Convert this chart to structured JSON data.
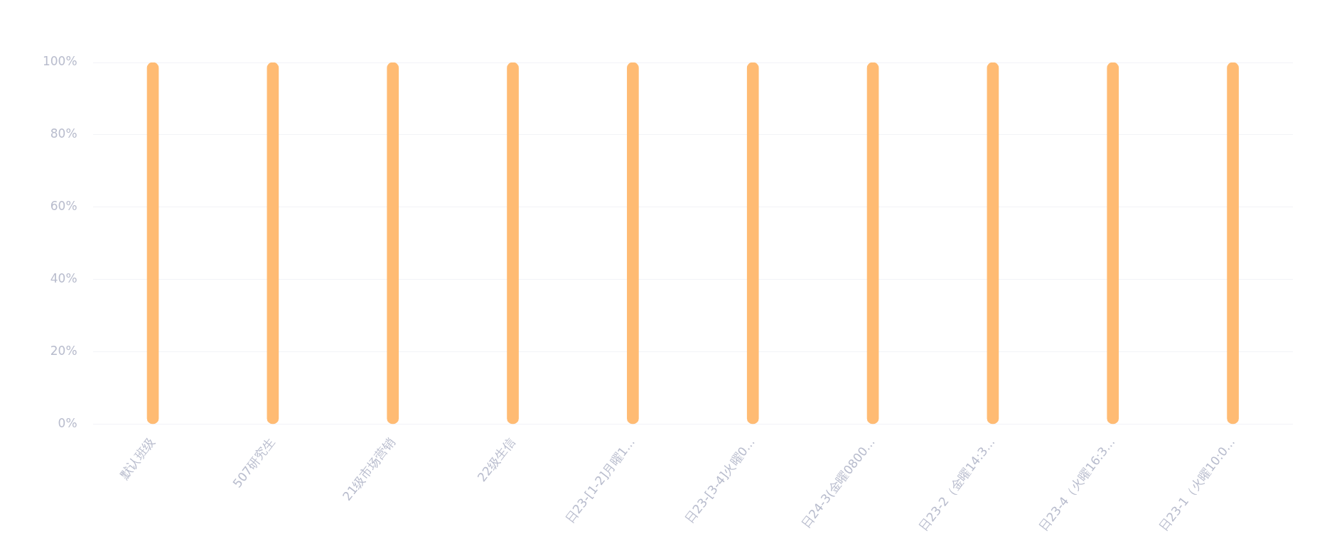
{
  "chart_data": {
    "type": "bar",
    "categories": [
      "默认班级",
      "507研究生",
      "21级市场营销",
      "22级生信",
      "日23-[1-2]月曜1...",
      "日23-[3-4]火曜0...",
      "日24-3(金曜0800...",
      "日23-2（金曜14:3...",
      "日23-4（火曜16:3...",
      "日23-1（火曜10:0..."
    ],
    "values": [
      100,
      100,
      100,
      100,
      100,
      100,
      100,
      100,
      100,
      100
    ],
    "color": "#ffbb73",
    "ylim": [
      0,
      100
    ],
    "yticks": [
      {
        "value": 0,
        "label": "0%"
      },
      {
        "value": 20,
        "label": "20%"
      },
      {
        "value": 40,
        "label": "40%"
      },
      {
        "value": 60,
        "label": "60%"
      },
      {
        "value": 80,
        "label": "80%"
      },
      {
        "value": 100,
        "label": "100%"
      }
    ],
    "grid": "y",
    "legend": false
  }
}
